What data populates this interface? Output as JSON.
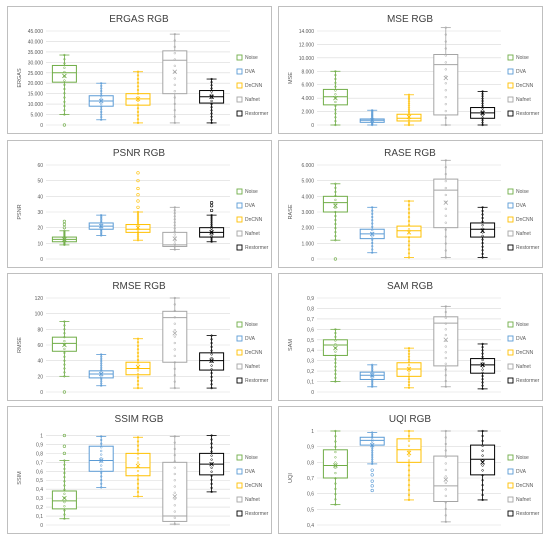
{
  "legend_labels": [
    "Noise",
    "DVA",
    "DnCNN",
    "Nafnet",
    "Restormer"
  ],
  "colors": {
    "Noise": "#70ad47",
    "DVA": "#5b9bd5",
    "DnCNN": "#ffc000",
    "Nafnet": "#a5a5a5",
    "Restormer": "#000000"
  },
  "chart_data": [
    {
      "type": "box",
      "title": "ERGAS RGB",
      "ylabel": "ERGAS",
      "ylim": [
        0,
        45000
      ],
      "yticks": [
        0,
        5000,
        10000,
        15000,
        20000,
        25000,
        30000,
        35000,
        40000,
        45000
      ],
      "ytick_labels": [
        "0",
        "5.000",
        "10.000",
        "15.000",
        "20.000",
        "25.000",
        "30.000",
        "35.000",
        "40.000",
        "45.000"
      ],
      "series": [
        {
          "name": "Noise",
          "min": 5000,
          "q1": 20500,
          "median": 25000,
          "q3": 28500,
          "max": 33500,
          "mean": 23500,
          "outliers": [
            0
          ]
        },
        {
          "name": "DVA",
          "min": 2500,
          "q1": 9000,
          "median": 11500,
          "q3": 14000,
          "max": 20000,
          "mean": 11500,
          "outliers": []
        },
        {
          "name": "DnCNN",
          "min": 1000,
          "q1": 9500,
          "median": 12500,
          "q3": 15000,
          "max": 25500,
          "mean": 12500,
          "outliers": []
        },
        {
          "name": "Nafnet",
          "min": 1000,
          "q1": 15000,
          "median": 31000,
          "q3": 35500,
          "max": 43500,
          "mean": 25500,
          "outliers": []
        },
        {
          "name": "Restormer",
          "min": 1000,
          "q1": 10500,
          "median": 13500,
          "q3": 16500,
          "max": 22000,
          "mean": 13500,
          "outliers": []
        }
      ]
    },
    {
      "type": "box",
      "title": "MSE RGB",
      "ylabel": "MSE",
      "ylim": [
        0,
        14000
      ],
      "yticks": [
        0,
        2000,
        4000,
        6000,
        8000,
        10000,
        12000,
        14000
      ],
      "ytick_labels": [
        "0",
        "2.000",
        "4.000",
        "6.000",
        "8.000",
        "10.000",
        "12.000",
        "14.000"
      ],
      "series": [
        {
          "name": "Noise",
          "min": 0,
          "q1": 3000,
          "median": 4200,
          "q3": 5300,
          "max": 8000,
          "mean": 4000,
          "outliers": []
        },
        {
          "name": "DVA",
          "min": 0,
          "q1": 400,
          "median": 700,
          "q3": 900,
          "max": 2200,
          "mean": 700,
          "outliers": []
        },
        {
          "name": "DnCNN",
          "min": 0,
          "q1": 600,
          "median": 1000,
          "q3": 1600,
          "max": 4500,
          "mean": 1200,
          "outliers": []
        },
        {
          "name": "Nafnet",
          "min": 0,
          "q1": 1500,
          "median": 9000,
          "q3": 10500,
          "max": 14500,
          "mean": 7000,
          "outliers": []
        },
        {
          "name": "Restormer",
          "min": 0,
          "q1": 1000,
          "median": 1800,
          "q3": 2600,
          "max": 5000,
          "mean": 1800,
          "outliers": []
        }
      ]
    },
    {
      "type": "box",
      "title": "PSNR RGB",
      "ylabel": "PSNR",
      "ylim": [
        0,
        60
      ],
      "yticks": [
        0,
        10,
        20,
        30,
        40,
        50,
        60
      ],
      "ytick_labels": [
        "0",
        "10",
        "20",
        "30",
        "40",
        "50",
        "60"
      ],
      "series": [
        {
          "name": "Noise",
          "min": 9,
          "q1": 11,
          "median": 12.5,
          "q3": 14,
          "max": 18,
          "mean": 12.5,
          "outliers": [
            20,
            22,
            24
          ]
        },
        {
          "name": "DVA",
          "min": 15,
          "q1": 19,
          "median": 21,
          "q3": 23,
          "max": 28,
          "mean": 21,
          "outliers": []
        },
        {
          "name": "DnCNN",
          "min": 12,
          "q1": 17,
          "median": 19,
          "q3": 22,
          "max": 30,
          "mean": 20,
          "outliers": [
            33,
            37,
            41,
            45,
            50,
            55
          ]
        },
        {
          "name": "Nafnet",
          "min": 6,
          "q1": 8,
          "median": 9,
          "q3": 17,
          "max": 33,
          "mean": 13,
          "outliers": []
        },
        {
          "name": "Restormer",
          "min": 11,
          "q1": 14,
          "median": 17,
          "q3": 20,
          "max": 28,
          "mean": 17,
          "outliers": [
            31,
            34,
            36
          ]
        }
      ]
    },
    {
      "type": "box",
      "title": "RASE RGB",
      "ylabel": "RASE",
      "ylim": [
        0,
        6000
      ],
      "yticks": [
        0,
        1000,
        2000,
        3000,
        4000,
        5000,
        6000
      ],
      "ytick_labels": [
        "0",
        "1.000",
        "2.000",
        "3.000",
        "4.000",
        "5.000",
        "6.000"
      ],
      "series": [
        {
          "name": "Noise",
          "min": 1200,
          "q1": 3000,
          "median": 3600,
          "q3": 4000,
          "max": 4800,
          "mean": 3400,
          "outliers": [
            0
          ]
        },
        {
          "name": "DVA",
          "min": 400,
          "q1": 1300,
          "median": 1600,
          "q3": 1900,
          "max": 3300,
          "mean": 1600,
          "outliers": []
        },
        {
          "name": "DnCNN",
          "min": 100,
          "q1": 1400,
          "median": 1800,
          "q3": 2100,
          "max": 3700,
          "mean": 1700,
          "outliers": []
        },
        {
          "name": "Nafnet",
          "min": 100,
          "q1": 2000,
          "median": 4400,
          "q3": 5100,
          "max": 6300,
          "mean": 3600,
          "outliers": []
        },
        {
          "name": "Restormer",
          "min": 100,
          "q1": 1400,
          "median": 1900,
          "q3": 2300,
          "max": 3300,
          "mean": 1800,
          "outliers": []
        }
      ]
    },
    {
      "type": "box",
      "title": "RMSE RGB",
      "ylabel": "RMSE",
      "ylim": [
        0,
        120
      ],
      "yticks": [
        0,
        20,
        40,
        60,
        80,
        100,
        120
      ],
      "ytick_labels": [
        "0",
        "20",
        "40",
        "60",
        "80",
        "100",
        "120"
      ],
      "series": [
        {
          "name": "Noise",
          "min": 20,
          "q1": 52,
          "median": 62,
          "q3": 70,
          "max": 90,
          "mean": 60,
          "outliers": [
            0
          ]
        },
        {
          "name": "DVA",
          "min": 8,
          "q1": 18,
          "median": 23,
          "q3": 27,
          "max": 48,
          "mean": 23,
          "outliers": []
        },
        {
          "name": "DnCNN",
          "min": 5,
          "q1": 22,
          "median": 30,
          "q3": 38,
          "max": 68,
          "mean": 32,
          "outliers": []
        },
        {
          "name": "Nafnet",
          "min": 5,
          "q1": 38,
          "median": 95,
          "q3": 103,
          "max": 120,
          "mean": 75,
          "outliers": []
        },
        {
          "name": "Restormer",
          "min": 5,
          "q1": 28,
          "median": 40,
          "q3": 50,
          "max": 72,
          "mean": 40,
          "outliers": []
        }
      ]
    },
    {
      "type": "box",
      "title": "SAM RGB",
      "ylabel": "SAM",
      "ylim": [
        0,
        0.9
      ],
      "yticks": [
        0,
        0.1,
        0.2,
        0.3,
        0.4,
        0.5,
        0.6,
        0.7,
        0.8,
        0.9
      ],
      "ytick_labels": [
        "0",
        "0,1",
        "0,2",
        "0,3",
        "0,4",
        "0,5",
        "0,6",
        "0,7",
        "0,8",
        "0,9"
      ],
      "series": [
        {
          "name": "Noise",
          "min": 0.1,
          "q1": 0.35,
          "median": 0.45,
          "q3": 0.5,
          "max": 0.6,
          "mean": 0.42,
          "outliers": []
        },
        {
          "name": "DVA",
          "min": 0.05,
          "q1": 0.12,
          "median": 0.16,
          "q3": 0.19,
          "max": 0.26,
          "mean": 0.16,
          "outliers": []
        },
        {
          "name": "DnCNN",
          "min": 0.04,
          "q1": 0.15,
          "median": 0.22,
          "q3": 0.28,
          "max": 0.42,
          "mean": 0.22,
          "outliers": []
        },
        {
          "name": "Nafnet",
          "min": 0.05,
          "q1": 0.25,
          "median": 0.66,
          "q3": 0.72,
          "max": 0.82,
          "mean": 0.5,
          "outliers": []
        },
        {
          "name": "Restormer",
          "min": 0.03,
          "q1": 0.18,
          "median": 0.26,
          "q3": 0.32,
          "max": 0.46,
          "mean": 0.26,
          "outliers": []
        }
      ]
    },
    {
      "type": "box",
      "title": "SSIM RGB",
      "ylabel": "SSIM",
      "ylim": [
        0,
        1.05
      ],
      "yticks": [
        0,
        0.1,
        0.2,
        0.3,
        0.4,
        0.5,
        0.6,
        0.7,
        0.8,
        0.9,
        1
      ],
      "ytick_labels": [
        "0",
        "0,1",
        "0,2",
        "0,3",
        "0,4",
        "0,5",
        "0,6",
        "0,7",
        "0,8",
        "0,9",
        "1"
      ],
      "series": [
        {
          "name": "Noise",
          "min": 0.07,
          "q1": 0.18,
          "median": 0.27,
          "q3": 0.38,
          "max": 0.72,
          "mean": 0.3,
          "outliers": [
            0.8,
            0.88,
            1
          ]
        },
        {
          "name": "DVA",
          "min": 0.42,
          "q1": 0.6,
          "median": 0.72,
          "q3": 0.88,
          "max": 0.99,
          "mean": 0.72,
          "outliers": []
        },
        {
          "name": "DnCNN",
          "min": 0.32,
          "q1": 0.55,
          "median": 0.64,
          "q3": 0.8,
          "max": 0.98,
          "mean": 0.66,
          "outliers": []
        },
        {
          "name": "Nafnet",
          "min": 0.01,
          "q1": 0.04,
          "median": 0.1,
          "q3": 0.7,
          "max": 0.99,
          "mean": 0.32,
          "outliers": []
        },
        {
          "name": "Restormer",
          "min": 0.37,
          "q1": 0.56,
          "median": 0.68,
          "q3": 0.8,
          "max": 1,
          "mean": 0.68,
          "outliers": []
        }
      ]
    },
    {
      "type": "box",
      "title": "UQI RGB",
      "ylabel": "UQI",
      "ylim": [
        0.4,
        1.0
      ],
      "yticks": [
        0.4,
        0.5,
        0.6,
        0.7,
        0.8,
        0.9,
        1
      ],
      "ytick_labels": [
        "0,4",
        "0,5",
        "0,6",
        "0,7",
        "0,8",
        "0,9",
        "1"
      ],
      "series": [
        {
          "name": "Noise",
          "min": 0.53,
          "q1": 0.7,
          "median": 0.78,
          "q3": 0.88,
          "max": 1,
          "mean": 0.78,
          "outliers": []
        },
        {
          "name": "DVA",
          "min": 0.79,
          "q1": 0.91,
          "median": 0.94,
          "q3": 0.96,
          "max": 0.99,
          "mean": 0.91,
          "outliers": [
            0.62,
            0.65,
            0.68,
            0.72,
            0.75
          ]
        },
        {
          "name": "DnCNN",
          "min": 0.56,
          "q1": 0.8,
          "median": 0.88,
          "q3": 0.95,
          "max": 1,
          "mean": 0.86,
          "outliers": []
        },
        {
          "name": "Nafnet",
          "min": 0.42,
          "q1": 0.55,
          "median": 0.65,
          "q3": 0.84,
          "max": 1,
          "mean": 0.69,
          "outliers": []
        },
        {
          "name": "Restormer",
          "min": 0.56,
          "q1": 0.72,
          "median": 0.82,
          "q3": 0.91,
          "max": 1,
          "mean": 0.8,
          "outliers": []
        }
      ]
    }
  ]
}
